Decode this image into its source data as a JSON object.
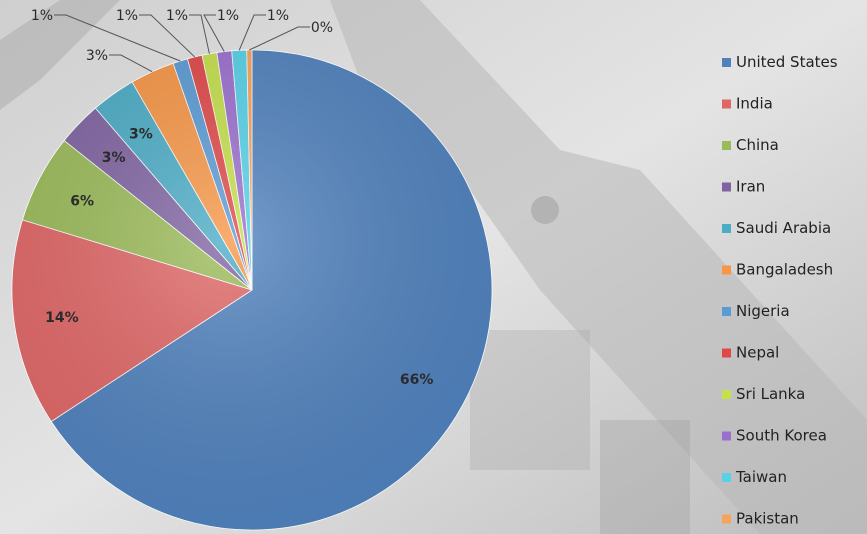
{
  "colors": {
    "background": "#d9d9d9"
  },
  "chart_data": {
    "type": "pie",
    "title": "",
    "legend_position": "right",
    "slices": [
      {
        "label": "United States",
        "value": 66,
        "display": "66%",
        "color": "#4f81bd"
      },
      {
        "label": "India",
        "value": 14,
        "display": "14%",
        "color": "#e06666"
      },
      {
        "label": "China",
        "value": 6,
        "display": "6%",
        "color": "#9bbb59"
      },
      {
        "label": "Iran",
        "value": 3,
        "display": "3%",
        "color": "#8064a2"
      },
      {
        "label": "Saudi Arabia",
        "value": 3,
        "display": "3%",
        "color": "#4bacc6"
      },
      {
        "label": "Bangaladesh",
        "value": 3,
        "display": "3%",
        "color": "#f79646"
      },
      {
        "label": "Nigeria",
        "value": 1,
        "display": "1%",
        "color": "#5b9bd5"
      },
      {
        "label": "Nepal",
        "value": 1,
        "display": "1%",
        "color": "#e04848"
      },
      {
        "label": "Sri Lanka",
        "value": 1,
        "display": "1%",
        "color": "#c4e04a"
      },
      {
        "label": "South Korea",
        "value": 1,
        "display": "1%",
        "color": "#9b6fce"
      },
      {
        "label": "Taiwan",
        "value": 1,
        "display": "1%",
        "color": "#56d1e8"
      },
      {
        "label": "Pakistan",
        "value": 0,
        "display": "0%",
        "color": "#f7a35c"
      }
    ]
  }
}
